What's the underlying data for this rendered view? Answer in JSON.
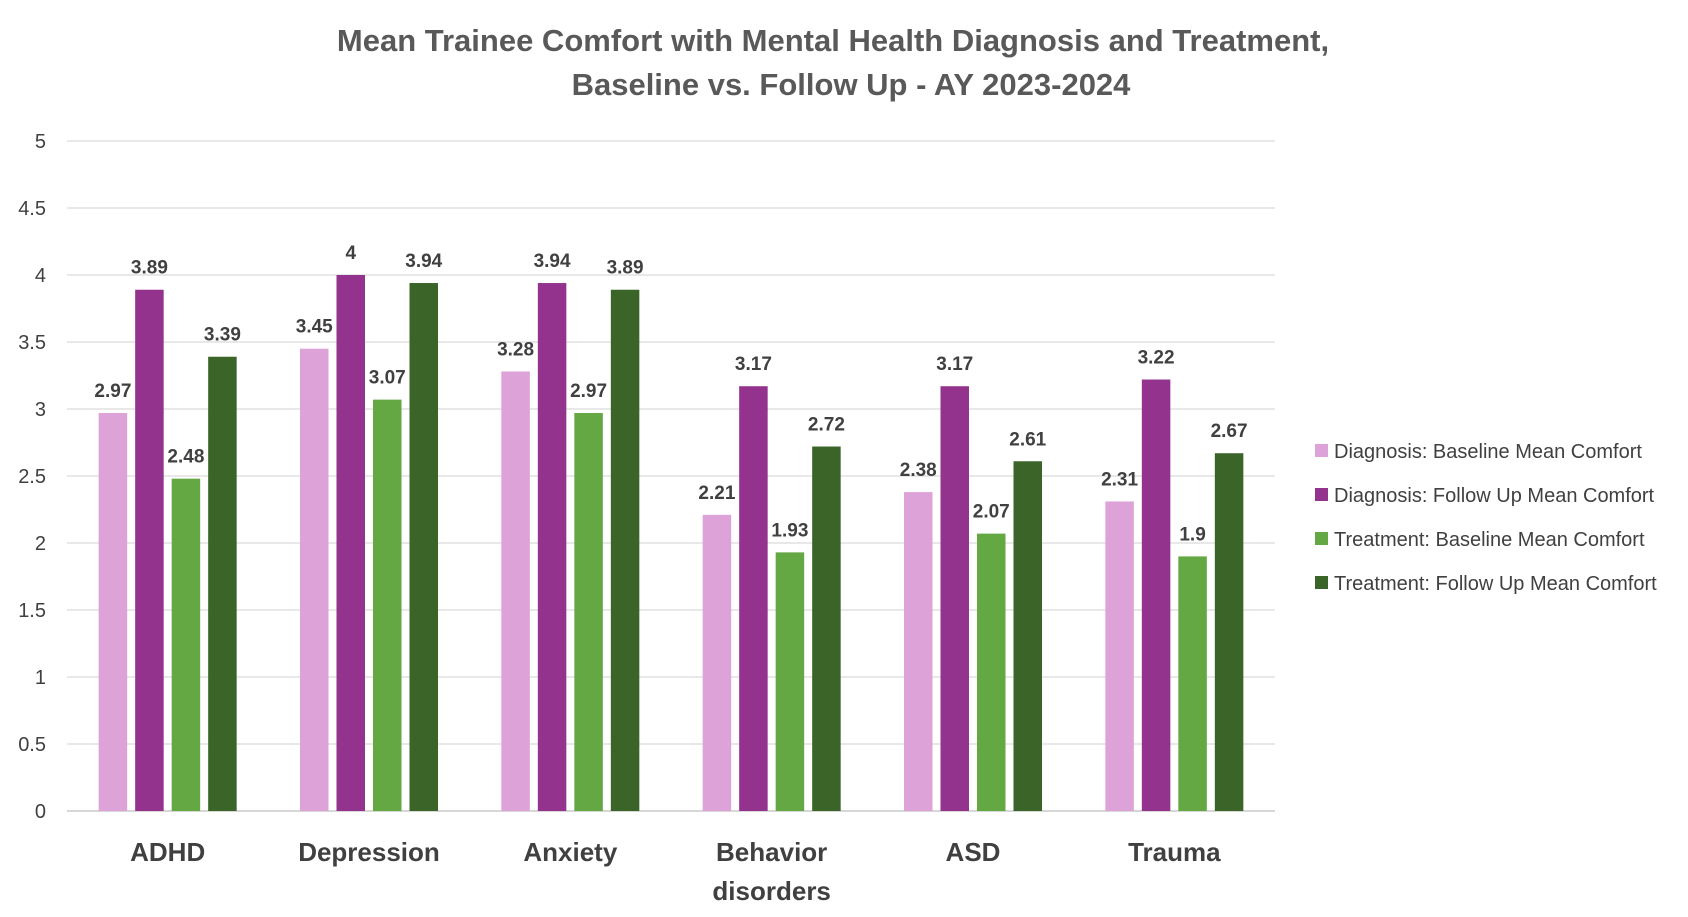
{
  "chart_data": {
    "type": "bar",
    "title": "Mean Trainee Comfort with Mental Health Diagnosis and Treatment,",
    "subtitle": "Baseline vs. Follow Up - AY 2023-2024",
    "xlabel": "",
    "ylabel": "",
    "ylim": [
      0,
      5
    ],
    "yticks": [
      "0",
      "0.5",
      "1",
      "1.5",
      "2",
      "2.5",
      "3",
      "3.5",
      "4",
      "4.5",
      "5"
    ],
    "grid": true,
    "legend_position": "right",
    "categories": [
      [
        "ADHD"
      ],
      [
        "Depression"
      ],
      [
        "Anxiety"
      ],
      [
        "Behavior",
        "disorders"
      ],
      [
        "ASD"
      ],
      [
        "Trauma"
      ]
    ],
    "series": [
      {
        "name": "Diagnosis: Baseline Mean Comfort",
        "color": "#dda3d9",
        "values": [
          2.97,
          3.45,
          3.28,
          2.21,
          2.38,
          2.31
        ],
        "labels": [
          "2.97",
          "3.45",
          "3.28",
          "2.21",
          "2.38",
          "2.31"
        ]
      },
      {
        "name": "Diagnosis: Follow Up Mean Comfort",
        "color": "#93338e",
        "values": [
          3.89,
          4,
          3.94,
          3.17,
          3.17,
          3.22
        ],
        "labels": [
          "3.89",
          "4",
          "3.94",
          "3.17",
          "3.17",
          "3.22"
        ]
      },
      {
        "name": "Treatment: Baseline Mean Comfort",
        "color": "#64a844",
        "values": [
          2.48,
          3.07,
          2.97,
          1.93,
          2.07,
          1.9
        ],
        "labels": [
          "2.48",
          "3.07",
          "2.97",
          "1.93",
          "2.07",
          "1.9"
        ]
      },
      {
        "name": "Treatment:  Follow Up Mean Comfort",
        "color": "#3b6428",
        "values": [
          3.39,
          3.94,
          3.89,
          2.72,
          2.61,
          2.67
        ],
        "labels": [
          "3.39",
          "3.94",
          "3.89",
          "2.72",
          "2.61",
          "2.67"
        ]
      }
    ]
  }
}
